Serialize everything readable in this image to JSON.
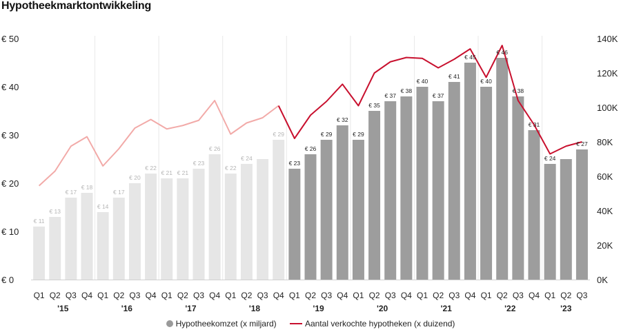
{
  "title": "Hypotheekmarktontwikkeling",
  "legend": {
    "bars": "Hypotheekomzet (x miljard)",
    "line": "Aantal verkochte hypotheken (x duizend)"
  },
  "colors": {
    "bar_dark": "#9d9d9d",
    "bar_light": "#e6e6e6",
    "line_dark": "#c8102e",
    "line_light": "#f2aaa8",
    "divider": "#e8e8e8",
    "axis": "#d0d0d0"
  },
  "chart_data": {
    "type": "bar",
    "title": "Hypotheekmarktontwikkeling",
    "categories": [
      "Q1",
      "Q2",
      "Q3",
      "Q4",
      "Q1",
      "Q2",
      "Q3",
      "Q4",
      "Q1",
      "Q2",
      "Q3",
      "Q4",
      "Q1",
      "Q2",
      "Q3",
      "Q4",
      "Q1",
      "Q2",
      "Q3",
      "Q4",
      "Q1",
      "Q2",
      "Q3",
      "Q4",
      "Q1",
      "Q2",
      "Q3",
      "Q4",
      "Q1",
      "Q2",
      "Q3",
      "Q4",
      "Q1",
      "Q2",
      "Q3"
    ],
    "years": [
      "'15",
      "'16",
      "'17",
      "'18",
      "'19",
      "'20",
      "'21",
      "'22",
      "'23"
    ],
    "series": [
      {
        "name": "Hypotheekomzet (x miljard)",
        "type": "bar",
        "axis": "left",
        "values": [
          11,
          13,
          17,
          18,
          14,
          17,
          20,
          22,
          21,
          21,
          23,
          26,
          22,
          24,
          25,
          29,
          23,
          26,
          29,
          32,
          29,
          35,
          37,
          38,
          40,
          37,
          41,
          45,
          40,
          46,
          38,
          31,
          24,
          25,
          27
        ],
        "labels": [
          "€ 11",
          "€ 13",
          "€ 17",
          "€ 18",
          "€ 14",
          "€ 17",
          "€ 20",
          "€ 22",
          "€ 21",
          "€ 21",
          "€ 23",
          "€ 26",
          "€ 22",
          "€ 24",
          "",
          "€ 29",
          "€ 23",
          "€ 26",
          "€ 29",
          "€ 32",
          "€ 29",
          "€ 35",
          "€ 37",
          "€ 38",
          "€ 40",
          "€ 37",
          "€ 41",
          "€ 45",
          "€ 40",
          "€ 46",
          "€ 38",
          "€ 31",
          "€ 24",
          "",
          "€ 27"
        ]
      },
      {
        "name": "Aantal verkochte hypotheken (x duizend)",
        "type": "line",
        "axis": "right",
        "values": [
          54.5,
          63,
          77.5,
          83,
          66,
          76,
          88,
          93,
          87.5,
          89.5,
          92.5,
          104,
          84.5,
          91,
          94,
          101,
          82,
          95.5,
          103.5,
          113.5,
          101,
          120,
          126.5,
          129,
          128.5,
          123,
          128,
          134,
          117.5,
          136,
          104,
          90,
          73,
          77.5,
          80
        ]
      }
    ],
    "highlight_from_index": 16,
    "yleft": {
      "min": 0,
      "max": 50,
      "ticks": [
        0,
        10,
        20,
        30,
        40,
        50
      ],
      "tick_labels": [
        "€ 0",
        "€ 10",
        "€ 20",
        "€ 30",
        "€ 40",
        "€ 50"
      ]
    },
    "yright": {
      "min": 0,
      "max": 140,
      "ticks": [
        0,
        20,
        40,
        60,
        80,
        100,
        120,
        140
      ],
      "tick_labels": [
        "0K",
        "20K",
        "40K",
        "60K",
        "80K",
        "100K",
        "120K",
        "140K"
      ]
    },
    "grid": false,
    "legend_position": "bottom-center"
  }
}
